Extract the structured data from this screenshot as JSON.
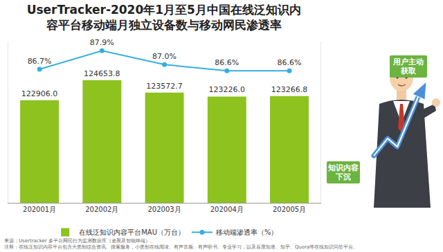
{
  "chart_data": {
    "type": "bar",
    "title": [
      "UserTracker-2020年1月至5月中国在线泛知识内",
      "容平台移动端月独立设备数与移动网民渗透率"
    ],
    "categories": [
      "202001月",
      "202002月",
      "202003月",
      "202004月",
      "202005月"
    ],
    "series": [
      {
        "name": "在线泛知识内容平台MAU（万台）",
        "type": "bar",
        "color": "#8dc21f",
        "values": [
          122906.0,
          124653.8,
          123572.7,
          123226.0,
          123266.8
        ],
        "value_labels": [
          "122906.0",
          "124653.8",
          "123572.7",
          "123226.0",
          "123266.8"
        ]
      },
      {
        "name": "移动端渗透率（%）",
        "type": "line",
        "axis": "y2",
        "color": "#35aee2",
        "marker": "circle",
        "values": [
          86.7,
          87.9,
          87.0,
          86.6,
          86.6
        ],
        "value_labels": [
          "86.7%",
          "87.9%",
          "87.0%",
          "86.6%",
          "86.6%"
        ]
      }
    ],
    "ylim": [
      114000,
      128000
    ],
    "yticks": [],
    "y2lim": [
      78,
      88.5
    ],
    "y2ticks": [],
    "data_labels": true,
    "tick_labels": "x",
    "legend": "bottom",
    "grid": false
  },
  "illustration": {
    "labels": [
      [
        "用户主动",
        "获取"
      ],
      [
        "知识内容",
        "下沉"
      ]
    ]
  },
  "source": "来源：Usertracker 多平台网民行为监测数据库（桌面及智能终端）。",
  "note": "注释：在线泛知识内容平台包含大类别综合资讯、搜索服务，小类别在线阅读、有声音频、有声听书、专业学习，以及百度知道、知乎、Quora等在线知识问答平台。"
}
